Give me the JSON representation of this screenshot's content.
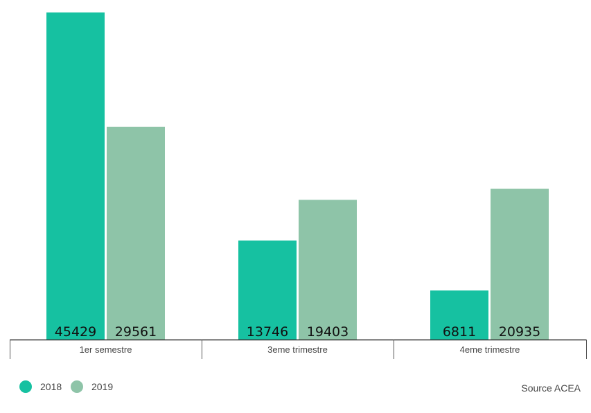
{
  "chart_data": {
    "type": "bar",
    "categories": [
      "1er semestre",
      "3eme trimestre",
      "4eme trimestre"
    ],
    "series": [
      {
        "name": "2018",
        "values": [
          45429,
          13746,
          6811
        ],
        "color": "#16c1a1"
      },
      {
        "name": "2019",
        "values": [
          29561,
          19403,
          20935
        ],
        "color": "#8ec4a8"
      }
    ],
    "value_labels": [
      [
        "45429",
        "13746",
        "6811"
      ],
      [
        "29561",
        "19403",
        "20935"
      ]
    ],
    "ylim": [
      0,
      45429
    ],
    "grid": false,
    "legend_position": "bottom-left",
    "source": "Source ACEA"
  }
}
